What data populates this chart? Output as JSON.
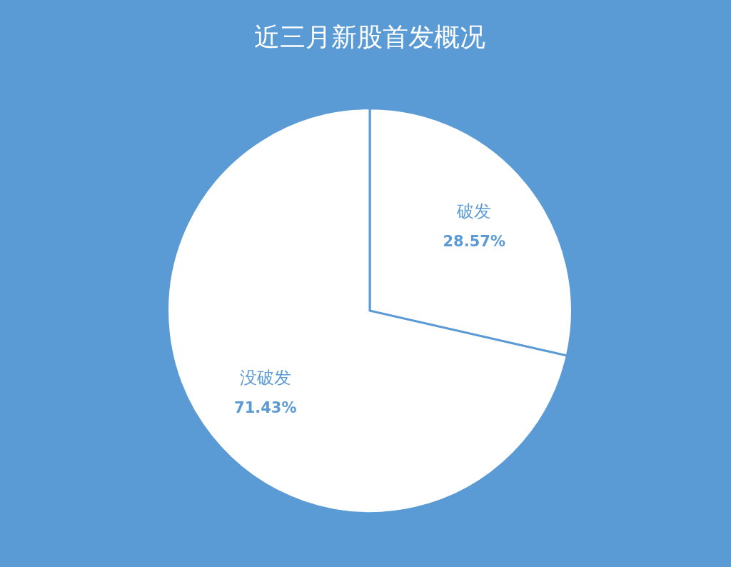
{
  "chart_data": {
    "type": "pie",
    "title": "近三月新股首发概况",
    "categories": [
      "破发",
      "没破发"
    ],
    "values": [
      28.57,
      71.43
    ],
    "colors": [
      "#ffffff",
      "#ffffff"
    ],
    "value_labels": [
      "28.57%",
      "71.43%"
    ]
  }
}
